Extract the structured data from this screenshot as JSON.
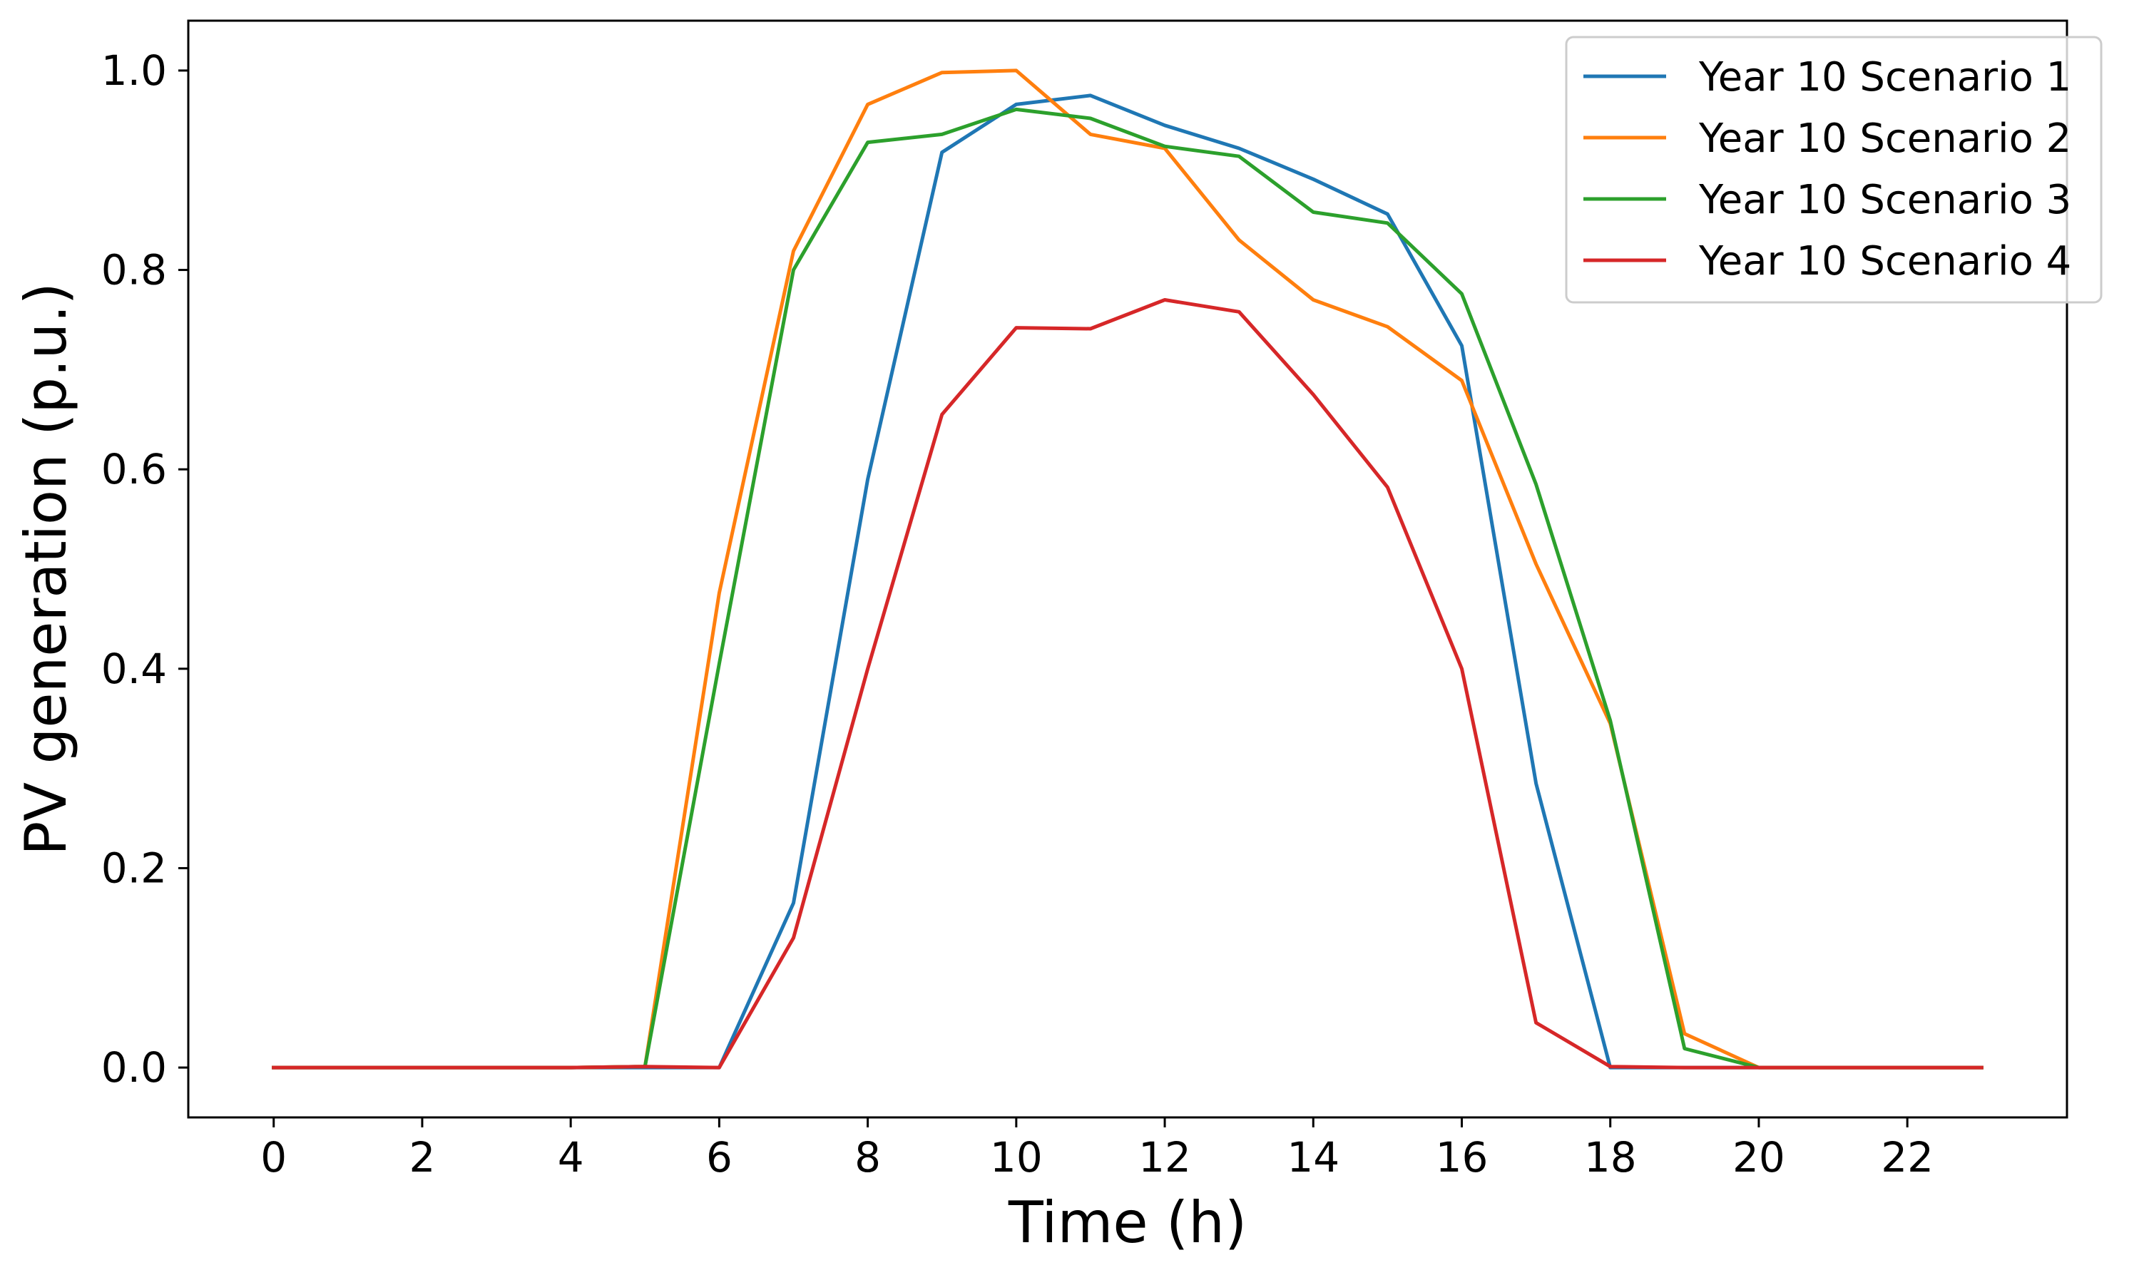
{
  "chart_data": {
    "type": "line",
    "title": "",
    "xlabel": "Time (h)",
    "ylabel": "PV generation (p.u.)",
    "xlim": [
      -1.15,
      24.15
    ],
    "ylim": [
      -0.05,
      1.05
    ],
    "grid": false,
    "legend_position": "top-right",
    "x": [
      0,
      1,
      2,
      3,
      4,
      5,
      6,
      7,
      8,
      9,
      10,
      11,
      12,
      13,
      14,
      15,
      16,
      17,
      18,
      19,
      20,
      21,
      22,
      23
    ],
    "x_ticks": [
      0,
      2,
      4,
      6,
      8,
      10,
      12,
      14,
      16,
      18,
      20,
      22
    ],
    "x_tick_labels": [
      "0",
      "2",
      "4",
      "6",
      "8",
      "10",
      "12",
      "14",
      "16",
      "18",
      "20",
      "22"
    ],
    "y_ticks": [
      0.0,
      0.2,
      0.4,
      0.6,
      0.8,
      1.0
    ],
    "y_tick_labels": [
      "0.0",
      "0.2",
      "0.4",
      "0.6",
      "0.8",
      "1.0"
    ],
    "series": [
      {
        "name": "Year 10 Scenario 1",
        "color": "#1f77b4",
        "values": [
          0,
          0,
          0,
          0,
          0,
          0,
          0,
          0.165,
          0.59,
          0.918,
          0.966,
          0.975,
          0.945,
          0.922,
          0.891,
          0.856,
          0.724,
          0.285,
          0.0,
          0,
          0,
          0,
          0,
          0
        ]
      },
      {
        "name": "Year 10 Scenario 2",
        "color": "#ff7f0e",
        "values": [
          0,
          0,
          0,
          0,
          0,
          0.001,
          0.476,
          0.819,
          0.966,
          0.998,
          1.0,
          0.936,
          0.922,
          0.83,
          0.77,
          0.743,
          0.689,
          0.505,
          0.345,
          0.034,
          0,
          0,
          0,
          0
        ]
      },
      {
        "name": "Year 10 Scenario 3",
        "color": "#2ca02c",
        "values": [
          0,
          0,
          0,
          0,
          0,
          0.001,
          0.405,
          0.8,
          0.928,
          0.936,
          0.961,
          0.952,
          0.924,
          0.914,
          0.858,
          0.847,
          0.776,
          0.585,
          0.348,
          0.019,
          0,
          0,
          0,
          0
        ]
      },
      {
        "name": "Year 10 Scenario 4",
        "color": "#d62728",
        "values": [
          0,
          0,
          0,
          0,
          0,
          0.001,
          0,
          0.13,
          0.4,
          0.655,
          0.742,
          0.741,
          0.77,
          0.758,
          0.675,
          0.582,
          0.4,
          0.045,
          0.001,
          0,
          0,
          0,
          0,
          0
        ]
      }
    ]
  }
}
